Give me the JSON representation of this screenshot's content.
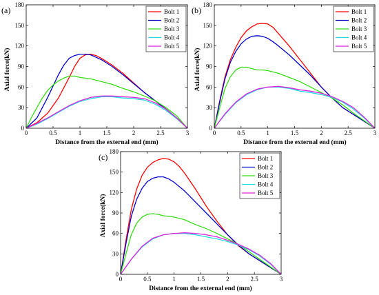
{
  "colors": {
    "bolt1": "#ff0000",
    "bolt2": "#0000cc",
    "bolt3": "#33dd11",
    "bolt4": "#22dddd",
    "bolt5": "#dd22dd"
  },
  "chart_data": [
    {
      "type": "line",
      "panel_label": "(a)",
      "xlabel": "Distance from the external end (mm)",
      "ylabel": "Axial force(kN)",
      "xlim": [
        0,
        3
      ],
      "ylim": [
        0,
        180
      ],
      "xticks": [
        "0",
        "0.5",
        "1",
        "1.5",
        "2",
        "2.5",
        "3"
      ],
      "yticks": [
        "0",
        "30",
        "60",
        "90",
        "120",
        "150",
        "180"
      ],
      "legend": "top-right",
      "series": [
        {
          "name": "Bolt 1",
          "color": "#ff0000",
          "x": [
            0,
            0.2,
            0.4,
            0.6,
            0.8,
            0.9,
            1.0,
            1.1,
            1.2,
            1.3,
            1.4,
            1.6,
            1.8,
            2.0,
            2.2,
            2.4,
            2.6,
            2.8,
            3.0
          ],
          "y": [
            0,
            8,
            22,
            44,
            74,
            90,
            102,
            107,
            108,
            106,
            102,
            92,
            80,
            66,
            52,
            40,
            28,
            15,
            0
          ]
        },
        {
          "name": "Bolt 2",
          "color": "#0000cc",
          "x": [
            0,
            0.2,
            0.4,
            0.6,
            0.7,
            0.8,
            0.9,
            1.0,
            1.1,
            1.2,
            1.4,
            1.6,
            1.8,
            2.0,
            2.2,
            2.4,
            2.6,
            2.8,
            3.0
          ],
          "y": [
            0,
            15,
            45,
            78,
            92,
            102,
            106,
            108,
            108,
            107,
            100,
            90,
            78,
            65,
            52,
            40,
            28,
            15,
            0
          ]
        },
        {
          "name": "Bolt 3",
          "color": "#33dd11",
          "x": [
            0,
            0.1,
            0.2,
            0.3,
            0.4,
            0.5,
            0.6,
            0.7,
            0.8,
            0.9,
            1.0,
            1.1,
            1.2,
            1.4,
            1.6,
            1.8,
            2.0,
            2.2,
            2.4,
            2.6,
            2.8,
            3.0
          ],
          "y": [
            0,
            16,
            30,
            44,
            55,
            63,
            69,
            73,
            76,
            76,
            74,
            73,
            72,
            68,
            64,
            58,
            53,
            47,
            40,
            30,
            18,
            0
          ]
        },
        {
          "name": "Bolt 4",
          "color": "#22dddd",
          "x": [
            0,
            0.2,
            0.4,
            0.6,
            0.8,
            1.0,
            1.2,
            1.4,
            1.6,
            1.8,
            2.0,
            2.2,
            2.4,
            2.6,
            2.8,
            3.0
          ],
          "y": [
            0,
            6,
            14,
            23,
            32,
            39,
            43,
            46,
            46,
            44,
            43,
            41,
            35,
            26,
            14,
            0
          ]
        },
        {
          "name": "Bolt 5",
          "color": "#dd22dd",
          "x": [
            0,
            0.2,
            0.4,
            0.6,
            0.8,
            1.0,
            1.2,
            1.4,
            1.6,
            1.8,
            2.0,
            2.2,
            2.4,
            2.6,
            2.8,
            3.0
          ],
          "y": [
            0,
            7,
            15,
            24,
            33,
            40,
            45,
            47,
            47,
            46,
            45,
            43,
            37,
            28,
            15,
            0
          ]
        }
      ]
    },
    {
      "type": "line",
      "panel_label": "(b)",
      "xlabel": "Distance from the external end (mm)",
      "ylabel": "Axial force(kN)",
      "xlim": [
        0,
        3
      ],
      "ylim": [
        0,
        180
      ],
      "xticks": [
        "0",
        "0.5",
        "1",
        "1.5",
        "2",
        "2.5",
        "3"
      ],
      "yticks": [
        "0",
        "30",
        "60",
        "90",
        "120",
        "150",
        "180"
      ],
      "legend": "top-right",
      "series": [
        {
          "name": "Bolt 1",
          "color": "#ff0000",
          "x": [
            0,
            0.1,
            0.2,
            0.3,
            0.4,
            0.5,
            0.6,
            0.7,
            0.8,
            0.9,
            1.0,
            1.1,
            1.2,
            1.4,
            1.6,
            1.8,
            2.0,
            2.2,
            2.4,
            2.6,
            2.8,
            3.0
          ],
          "y": [
            0,
            40,
            75,
            100,
            118,
            132,
            142,
            148,
            152,
            153,
            152,
            147,
            138,
            120,
            100,
            80,
            60,
            44,
            30,
            20,
            10,
            0
          ]
        },
        {
          "name": "Bolt 2",
          "color": "#0000cc",
          "x": [
            0,
            0.1,
            0.2,
            0.3,
            0.4,
            0.5,
            0.6,
            0.7,
            0.8,
            0.9,
            1.0,
            1.1,
            1.2,
            1.4,
            1.6,
            1.8,
            2.0,
            2.2,
            2.4,
            2.6,
            2.8,
            3.0
          ],
          "y": [
            0,
            38,
            72,
            96,
            112,
            123,
            130,
            134,
            135,
            134,
            131,
            126,
            120,
            107,
            92,
            77,
            60,
            44,
            30,
            20,
            10,
            0
          ]
        },
        {
          "name": "Bolt 3",
          "color": "#33dd11",
          "x": [
            0,
            0.1,
            0.2,
            0.3,
            0.4,
            0.5,
            0.6,
            0.7,
            0.8,
            0.9,
            1.0,
            1.2,
            1.4,
            1.6,
            1.8,
            2.0,
            2.2,
            2.4,
            2.6,
            2.8,
            3.0
          ],
          "y": [
            0,
            30,
            58,
            75,
            85,
            89,
            89,
            87,
            85,
            85,
            84,
            80,
            74,
            68,
            60,
            52,
            44,
            34,
            22,
            11,
            0
          ]
        },
        {
          "name": "Bolt 4",
          "color": "#22dddd",
          "x": [
            0,
            0.2,
            0.4,
            0.6,
            0.8,
            1.0,
            1.2,
            1.4,
            1.6,
            1.8,
            2.0,
            2.2,
            2.4,
            2.6,
            2.8,
            3.0
          ],
          "y": [
            0,
            20,
            37,
            49,
            56,
            60,
            60,
            58,
            54,
            52,
            49,
            45,
            38,
            28,
            15,
            0
          ]
        },
        {
          "name": "Bolt 5",
          "color": "#dd22dd",
          "x": [
            0,
            0.2,
            0.4,
            0.6,
            0.8,
            1.0,
            1.2,
            1.4,
            1.6,
            1.8,
            2.0,
            2.2,
            2.4,
            2.6,
            2.8,
            3.0
          ],
          "y": [
            0,
            21,
            38,
            50,
            57,
            60,
            61,
            59,
            56,
            54,
            51,
            46,
            39,
            30,
            16,
            0
          ]
        }
      ]
    },
    {
      "type": "line",
      "panel_label": "(c)",
      "xlabel": "Distance from the external end (mm)",
      "ylabel": "Axial force(kN)",
      "xlim": [
        0,
        3
      ],
      "ylim": [
        0,
        180
      ],
      "xticks": [
        "0",
        "0.5",
        "1",
        "1.5",
        "2",
        "2.5",
        "3"
      ],
      "yticks": [
        "0",
        "30",
        "60",
        "90",
        "120",
        "150",
        "180"
      ],
      "legend": "top-right",
      "series": [
        {
          "name": "Bolt 1",
          "color": "#ff0000",
          "x": [
            0,
            0.1,
            0.2,
            0.3,
            0.4,
            0.5,
            0.6,
            0.7,
            0.8,
            0.9,
            1.0,
            1.1,
            1.2,
            1.4,
            1.6,
            1.8,
            2.0,
            2.2,
            2.4,
            2.6,
            2.8,
            3.0
          ],
          "y": [
            0,
            50,
            95,
            125,
            145,
            157,
            164,
            168,
            170,
            169,
            165,
            158,
            148,
            125,
            100,
            78,
            58,
            42,
            30,
            20,
            10,
            0
          ]
        },
        {
          "name": "Bolt 2",
          "color": "#0000cc",
          "x": [
            0,
            0.1,
            0.2,
            0.3,
            0.4,
            0.5,
            0.6,
            0.7,
            0.8,
            0.9,
            1.0,
            1.2,
            1.4,
            1.6,
            1.8,
            2.0,
            2.2,
            2.4,
            2.6,
            2.8,
            3.0
          ],
          "y": [
            0,
            45,
            85,
            110,
            126,
            136,
            141,
            143,
            143,
            140,
            135,
            122,
            106,
            90,
            74,
            58,
            43,
            30,
            20,
            10,
            0
          ]
        },
        {
          "name": "Bolt 3",
          "color": "#33dd11",
          "x": [
            0,
            0.1,
            0.2,
            0.3,
            0.4,
            0.5,
            0.6,
            0.7,
            0.8,
            0.9,
            1.0,
            1.2,
            1.4,
            1.6,
            1.8,
            2.0,
            2.2,
            2.4,
            2.6,
            2.8,
            3.0
          ],
          "y": [
            0,
            30,
            58,
            75,
            84,
            88,
            89,
            88,
            86,
            85,
            84,
            80,
            73,
            67,
            60,
            52,
            44,
            33,
            22,
            11,
            0
          ]
        },
        {
          "name": "Bolt 4",
          "color": "#22dddd",
          "x": [
            0,
            0.2,
            0.4,
            0.6,
            0.8,
            1.0,
            1.2,
            1.4,
            1.6,
            1.8,
            2.0,
            2.2,
            2.4,
            2.6,
            2.8,
            3.0
          ],
          "y": [
            0,
            22,
            40,
            52,
            58,
            60,
            60,
            58,
            55,
            52,
            48,
            43,
            36,
            27,
            15,
            0
          ]
        },
        {
          "name": "Bolt 5",
          "color": "#dd22dd",
          "x": [
            0,
            0.2,
            0.4,
            0.6,
            0.8,
            1.0,
            1.2,
            1.4,
            1.6,
            1.8,
            2.0,
            2.2,
            2.4,
            2.6,
            2.8,
            3.0
          ],
          "y": [
            0,
            22,
            41,
            53,
            58,
            60,
            61,
            60,
            58,
            55,
            50,
            44,
            37,
            28,
            16,
            0
          ]
        }
      ]
    }
  ]
}
